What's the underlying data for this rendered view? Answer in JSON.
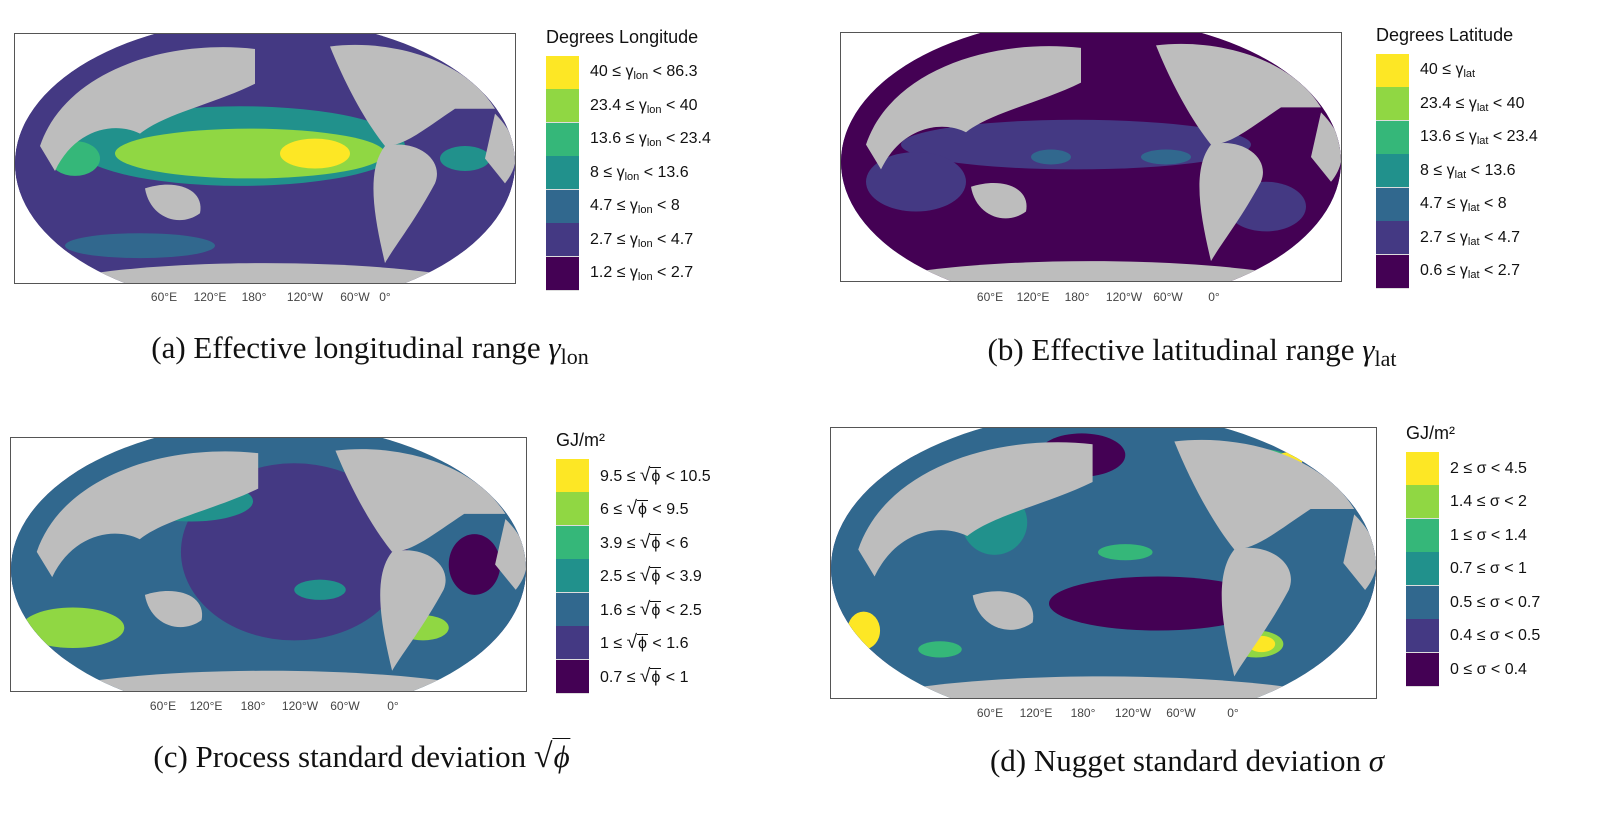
{
  "colors": [
    "#fde725",
    "#90d743",
    "#35b779",
    "#21918c",
    "#31688e",
    "#443983",
    "#440154"
  ],
  "land_color": "#bdbdbd",
  "panels": [
    {
      "id": "a",
      "legend_title": "Degrees Longitude",
      "symbol_type": "gamma",
      "items": [
        {
          "lo": "40 ≤ ",
          "sym": "γ",
          "sub": "lon",
          "hi": " < 86.3"
        },
        {
          "lo": "23.4 ≤ ",
          "sym": "γ",
          "sub": "lon",
          "hi": " < 40"
        },
        {
          "lo": "13.6 ≤ ",
          "sym": "γ",
          "sub": "lon",
          "hi": " < 23.4"
        },
        {
          "lo": "8 ≤ ",
          "sym": "γ",
          "sub": "lon",
          "hi": " < 13.6"
        },
        {
          "lo": "4.7 ≤ ",
          "sym": "γ",
          "sub": "lon",
          "hi": " < 8"
        },
        {
          "lo": "2.7 ≤ ",
          "sym": "γ",
          "sub": "lon",
          "hi": " < 4.7"
        },
        {
          "lo": "1.2 ≤ ",
          "sym": "γ",
          "sub": "lon",
          "hi": " < 2.7"
        }
      ],
      "ticks": [
        "60°E",
        "120°E",
        "180°",
        "120°W",
        "60°W",
        "0°"
      ],
      "caption": {
        "prefix": "(a) Effective longitudinal range ",
        "sym": "γ",
        "sub": "lon"
      }
    },
    {
      "id": "b",
      "legend_title": "Degrees Latitude",
      "symbol_type": "gamma",
      "items": [
        {
          "lo": "40 ≤ ",
          "sym": "γ",
          "sub": "lat",
          "hi": ""
        },
        {
          "lo": "23.4 ≤ ",
          "sym": "γ",
          "sub": "lat",
          "hi": " < 40"
        },
        {
          "lo": "13.6 ≤ ",
          "sym": "γ",
          "sub": "lat",
          "hi": " < 23.4"
        },
        {
          "lo": "8 ≤ ",
          "sym": "γ",
          "sub": "lat",
          "hi": " < 13.6"
        },
        {
          "lo": "4.7 ≤ ",
          "sym": "γ",
          "sub": "lat",
          "hi": " < 8"
        },
        {
          "lo": "2.7 ≤ ",
          "sym": "γ",
          "sub": "lat",
          "hi": " < 4.7"
        },
        {
          "lo": "0.6 ≤ ",
          "sym": "γ",
          "sub": "lat",
          "hi": " < 2.7"
        }
      ],
      "ticks": [
        "60°E",
        "120°E",
        "180°",
        "120°W",
        "60°W",
        "0°"
      ],
      "caption": {
        "prefix": "(b) Effective latitudinal range ",
        "sym": "γ",
        "sub": "lat"
      }
    },
    {
      "id": "c",
      "legend_title": "GJ/m²",
      "symbol_type": "sqrt",
      "items": [
        {
          "lo": "9.5 ≤ ",
          "sym": "ϕ",
          "sub": "",
          "hi": " < 10.5"
        },
        {
          "lo": "6 ≤ ",
          "sym": "ϕ",
          "sub": "",
          "hi": " < 9.5"
        },
        {
          "lo": "3.9 ≤ ",
          "sym": "ϕ",
          "sub": "",
          "hi": " < 6"
        },
        {
          "lo": "2.5 ≤ ",
          "sym": "ϕ",
          "sub": "",
          "hi": " < 3.9"
        },
        {
          "lo": "1.6 ≤ ",
          "sym": "ϕ",
          "sub": "",
          "hi": " < 2.5"
        },
        {
          "lo": "1 ≤ ",
          "sym": "ϕ",
          "sub": "",
          "hi": " < 1.6"
        },
        {
          "lo": "0.7 ≤ ",
          "sym": "ϕ",
          "sub": "",
          "hi": " < 1"
        }
      ],
      "ticks": [
        "60°E",
        "120°E",
        "180°",
        "120°W",
        "60°W",
        "0°"
      ],
      "caption": {
        "prefix": "(c) Process standard deviation ",
        "sym": "ϕ",
        "sub": ""
      }
    },
    {
      "id": "d",
      "legend_title": "GJ/m²",
      "symbol_type": "plain",
      "items": [
        {
          "lo": "2 ≤ ",
          "sym": "σ",
          "sub": "",
          "hi": " < 4.5"
        },
        {
          "lo": "1.4 ≤ ",
          "sym": "σ",
          "sub": "",
          "hi": " < 2"
        },
        {
          "lo": "1 ≤ ",
          "sym": "σ",
          "sub": "",
          "hi": " < 1.4"
        },
        {
          "lo": "0.7 ≤ ",
          "sym": "σ",
          "sub": "",
          "hi": " < 1"
        },
        {
          "lo": "0.5 ≤ ",
          "sym": "σ",
          "sub": "",
          "hi": " < 0.7"
        },
        {
          "lo": "0.4 ≤ ",
          "sym": "σ",
          "sub": "",
          "hi": " < 0.5"
        },
        {
          "lo": "0 ≤ ",
          "sym": "σ",
          "sub": "",
          "hi": " < 0.4"
        }
      ],
      "ticks": [
        "60°E",
        "120°E",
        "180°",
        "120°W",
        "60°W",
        "0°"
      ],
      "caption": {
        "prefix": "(d) Nugget standard deviation ",
        "sym": "σ",
        "sub": ""
      }
    }
  ]
}
